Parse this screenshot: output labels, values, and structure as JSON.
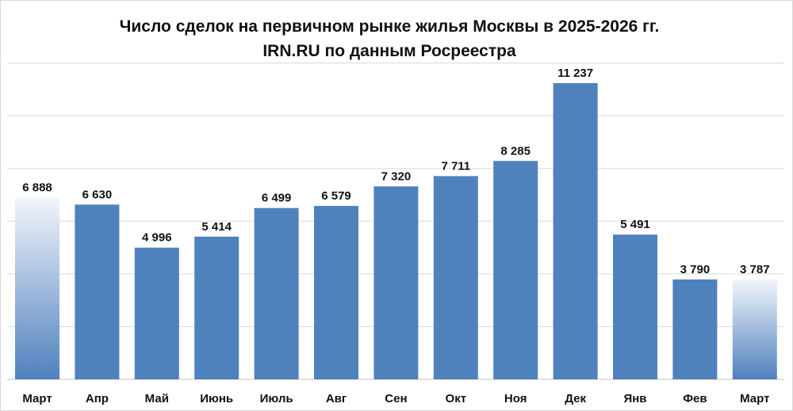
{
  "chart_data": {
    "type": "bar",
    "title": "Число сделок на первичном рынке жилья  Москвы в 2025-2026 гг.",
    "subtitle": "IRN.RU по данным Росреестра",
    "xlabel": "",
    "ylabel": "",
    "categories": [
      "Март",
      "Апр",
      "Май",
      "Июнь",
      "Июль",
      "Авг",
      "Сен",
      "Окт",
      "Ноя",
      "Дек",
      "Янв",
      "Фев",
      "Март"
    ],
    "values": [
      6888,
      6630,
      4996,
      5414,
      6499,
      6579,
      7320,
      7711,
      8285,
      11237,
      5491,
      3790,
      3787
    ],
    "value_labels": [
      "6 888",
      "6 630",
      "4 996",
      "5 414",
      "6 499",
      "6 579",
      "7 320",
      "7 711",
      "8 285",
      "11 237",
      "5 491",
      "3 790",
      "3 787"
    ],
    "highlighted_bars": [
      0,
      12
    ],
    "ylim": [
      0,
      12000
    ],
    "grid": true,
    "grid_step": 2000,
    "y_axis_labels_shown": false,
    "legend": "none",
    "colors": {
      "bar": "#4f81bd",
      "highlight_top": "#f2f5fb",
      "highlight_bottom": "#4f81bd",
      "gridline": "#d9d9d9",
      "axis": "#bfbfbf"
    }
  }
}
